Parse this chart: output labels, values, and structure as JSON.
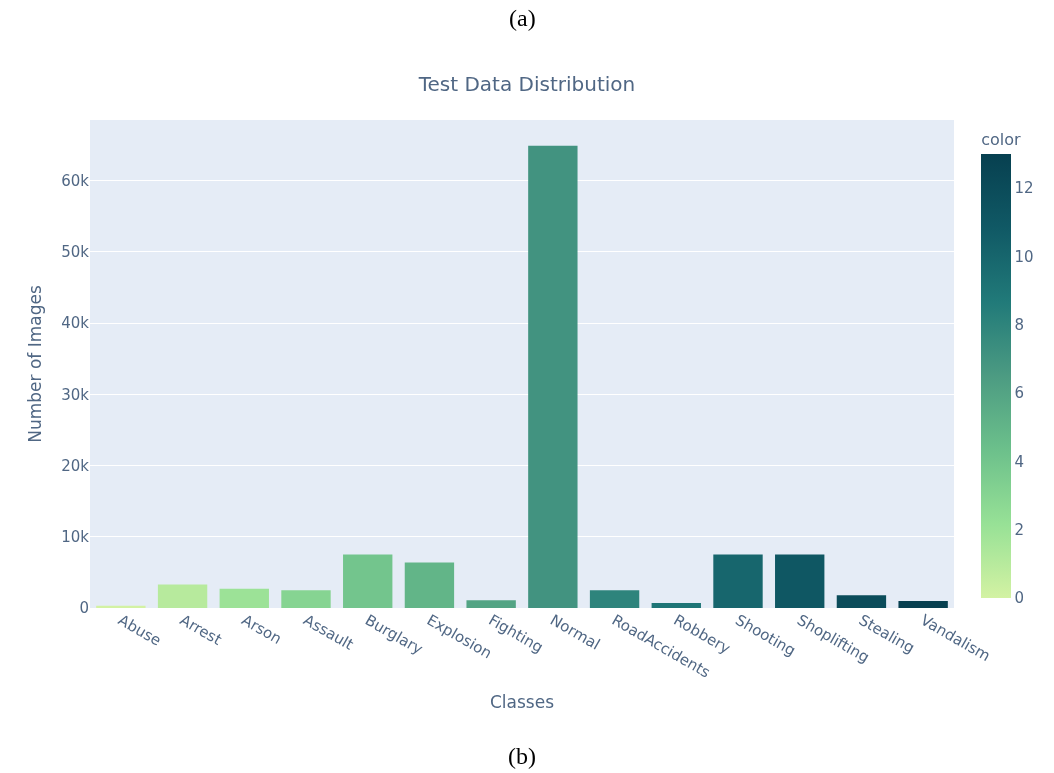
{
  "chart_data": {
    "type": "bar",
    "title": "Test Data Distribution",
    "xlabel": "Classes",
    "ylabel": "Number of Images",
    "clabel": "color",
    "annotations": [
      "(a)",
      "(b)"
    ],
    "categories": [
      "Abuse",
      "Arrest",
      "Arson",
      "Assault",
      "Burglary",
      "Explosion",
      "Fighting",
      "Normal",
      "RoadAccidents",
      "Robbery",
      "Shooting",
      "Shoplifting",
      "Stealing",
      "Vandalism"
    ],
    "values": [
      300,
      3300,
      2700,
      2500,
      7500,
      6400,
      1100,
      64900,
      2500,
      700,
      7500,
      7500,
      1800,
      1000
    ],
    "cvalues": [
      0,
      1,
      2,
      3,
      4,
      5,
      6,
      7,
      8,
      9,
      10,
      11,
      12,
      13
    ],
    "clim": [
      0,
      13
    ],
    "cticks": [
      0,
      2,
      4,
      6,
      8,
      10,
      12
    ],
    "ylim": [
      0,
      68500
    ],
    "yticks": [
      0,
      {
        "value": 10000,
        "label": "10k"
      },
      {
        "value": 20000,
        "label": "20k"
      },
      {
        "value": 30000,
        "label": "30k"
      },
      {
        "value": 40000,
        "label": "40k"
      },
      {
        "value": 50000,
        "label": "50k"
      },
      {
        "value": 60000,
        "label": "60k"
      }
    ],
    "grid": "y",
    "legend": false
  }
}
